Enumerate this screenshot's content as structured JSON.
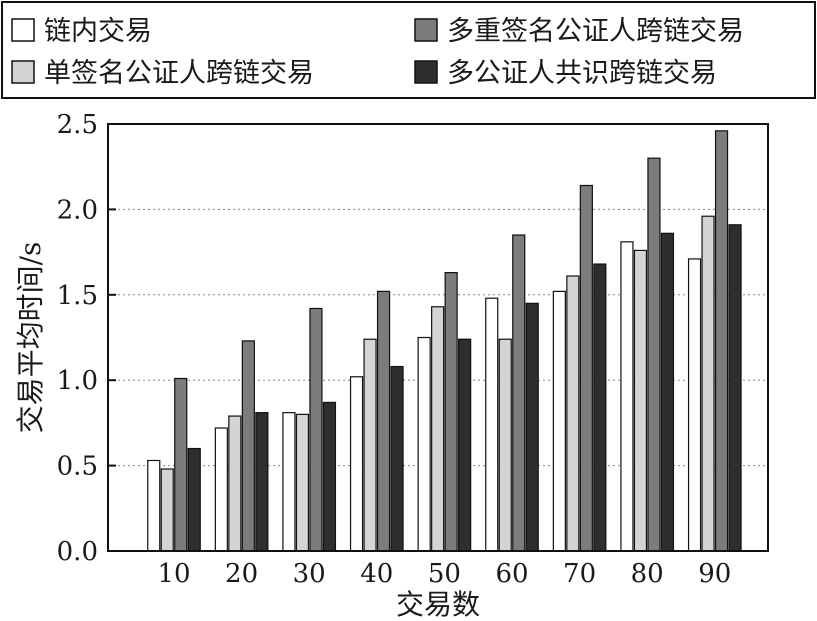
{
  "chart_data": {
    "type": "bar",
    "xlabel": "交易数",
    "ylabel": "交易平均时间/s",
    "categories": [
      "10",
      "20",
      "30",
      "40",
      "50",
      "60",
      "70",
      "80",
      "90"
    ],
    "ylim": [
      0,
      2.5
    ],
    "yticks": [
      "0.0",
      "0.5",
      "1.0",
      "1.5",
      "2.0",
      "2.5"
    ],
    "grid": "horizontal-dotted",
    "legend_position": "top",
    "series": [
      {
        "name": "链内交易",
        "color": "#ffffff",
        "values": [
          0.53,
          0.72,
          0.81,
          1.02,
          1.25,
          1.48,
          1.52,
          1.81,
          1.71
        ]
      },
      {
        "name": "单签名公证人跨链交易",
        "color": "#d4d4d4",
        "values": [
          0.48,
          0.79,
          0.8,
          1.24,
          1.43,
          1.24,
          1.61,
          1.76,
          1.96
        ]
      },
      {
        "name": "多重签名公证人跨链交易",
        "color": "#7c7c7c",
        "values": [
          1.01,
          1.23,
          1.42,
          1.52,
          1.63,
          1.85,
          2.14,
          2.3,
          2.46
        ]
      },
      {
        "name": "多公证人共识跨链交易",
        "color": "#2e2e2e",
        "values": [
          0.6,
          0.81,
          0.87,
          1.08,
          1.24,
          1.45,
          1.68,
          1.86,
          1.91
        ]
      }
    ]
  }
}
